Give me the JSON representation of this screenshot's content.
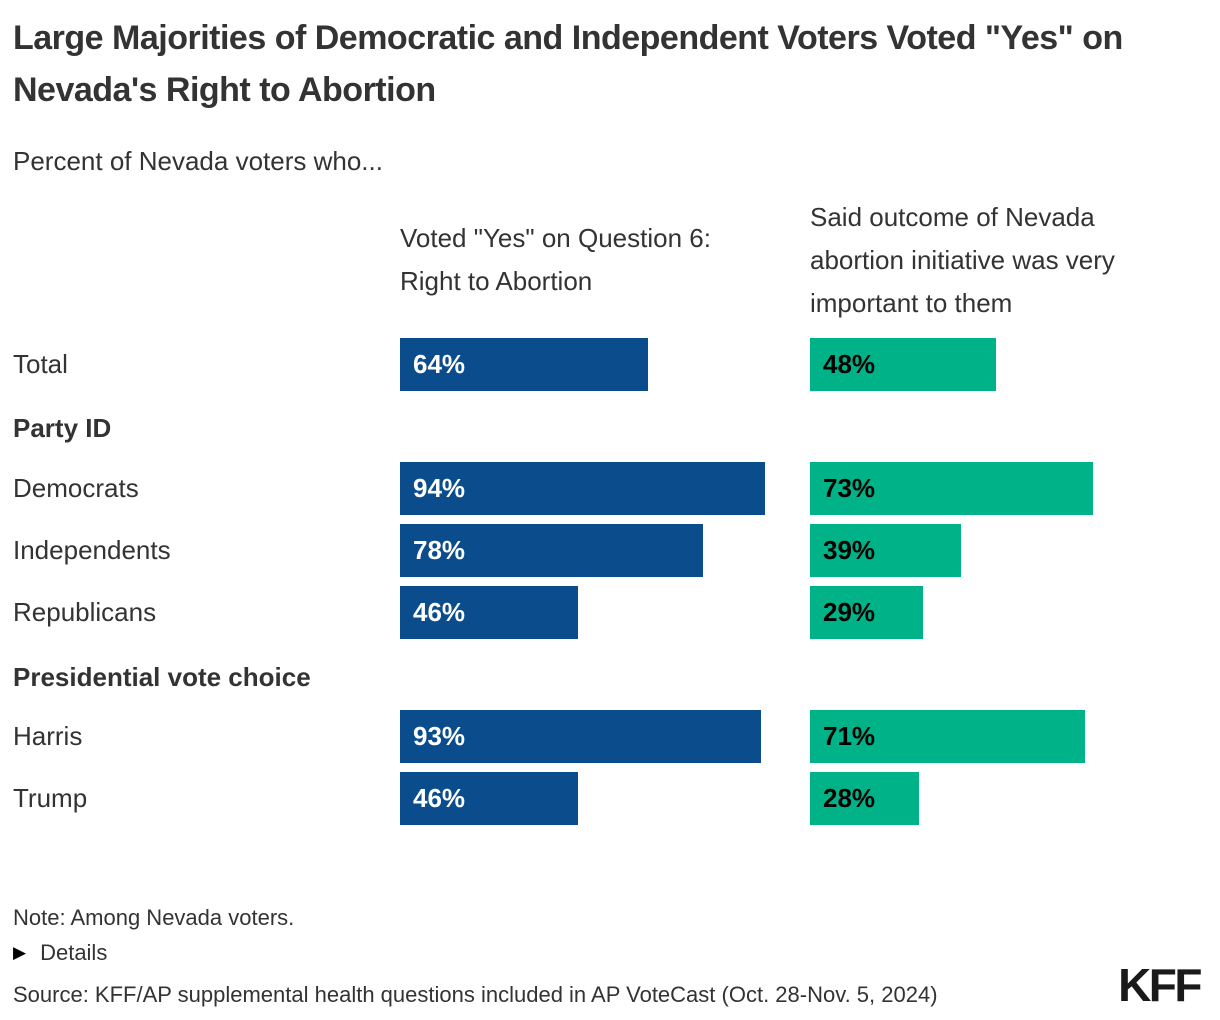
{
  "title": "Large Majorities of Democratic and Independent Voters Voted \"Yes\" on Nevada's Right to Abortion",
  "subtitle": "Percent of Nevada voters who...",
  "colors": {
    "yes_bar": "#0b4d8c",
    "important_bar": "#00b287",
    "yes_label_text": "#ffffff",
    "important_label_text": "#000000",
    "text": "#333333"
  },
  "chart_data": {
    "type": "bar",
    "orientation": "horizontal",
    "unit": "percent",
    "xlim": [
      0,
      100
    ],
    "grid": false,
    "col1_header": "Voted \"Yes\" on Question 6: Right to Abortion",
    "col2_header": "Said outcome of Nevada abortion initiative was very important to them",
    "section1_header": "Party ID",
    "section2_header": "Presidential vote choice",
    "series": [
      {
        "name": "Voted \"Yes\" on Question 6: Right to Abortion",
        "color": "#0b4d8c",
        "values": [
          64,
          94,
          78,
          46,
          93,
          46
        ]
      },
      {
        "name": "Said outcome of Nevada abortion initiative was very important to them",
        "color": "#00b287",
        "values": [
          48,
          73,
          39,
          29,
          71,
          28
        ]
      }
    ],
    "categories": [
      "Total",
      "Democrats",
      "Independents",
      "Republicans",
      "Harris",
      "Trump"
    ],
    "rows": [
      {
        "label": "Total",
        "yes": 64,
        "yes_text": "64%",
        "imp": 48,
        "imp_text": "48%"
      },
      {
        "label": "Democrats",
        "yes": 94,
        "yes_text": "94%",
        "imp": 73,
        "imp_text": "73%"
      },
      {
        "label": "Independents",
        "yes": 78,
        "yes_text": "78%",
        "imp": 39,
        "imp_text": "39%"
      },
      {
        "label": "Republicans",
        "yes": 46,
        "yes_text": "46%",
        "imp": 29,
        "imp_text": "29%"
      },
      {
        "label": "Harris",
        "yes": 93,
        "yes_text": "93%",
        "imp": 71,
        "imp_text": "71%"
      },
      {
        "label": "Trump",
        "yes": 46,
        "yes_text": "46%",
        "imp": 28,
        "imp_text": "28%"
      }
    ]
  },
  "footer": {
    "note": "Note: Among Nevada voters.",
    "details_arrow": "▶",
    "details_label": "Details",
    "source": "Source: KFF/AP supplemental health questions included in AP VoteCast (Oct. 28-Nov. 5, 2024)",
    "logo": "KFF"
  }
}
